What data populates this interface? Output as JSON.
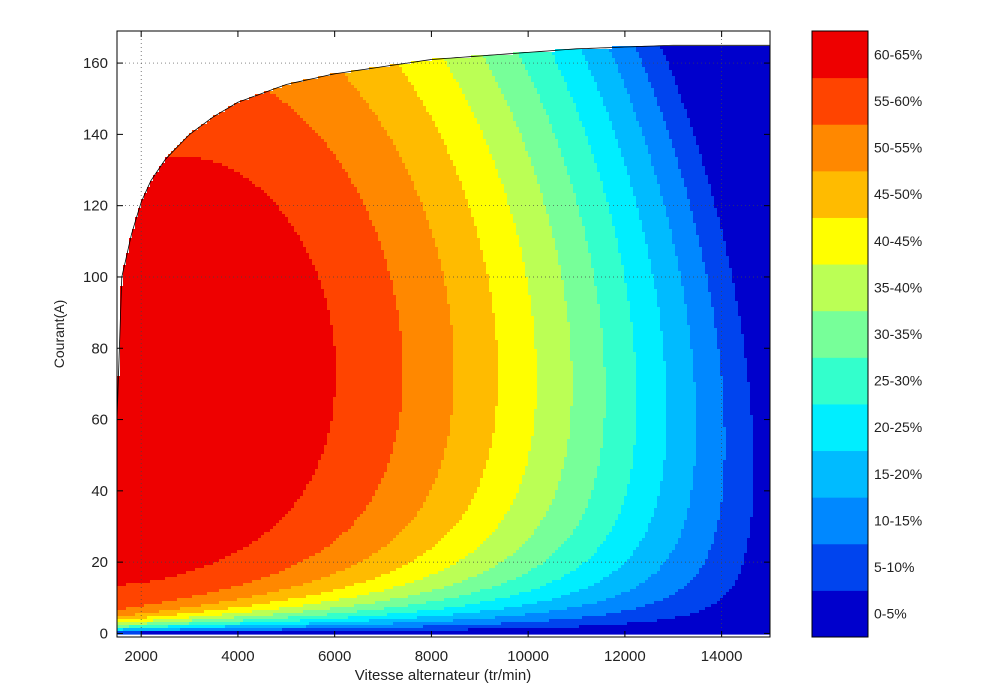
{
  "chart_data": {
    "type": "contour",
    "title": "",
    "xlabel": "Vitesse alternateur (tr/min)",
    "ylabel": "Courant(A)",
    "xlim": [
      1500,
      15000
    ],
    "ylim": [
      -1,
      169
    ],
    "x_ticks": [
      2000,
      4000,
      6000,
      8000,
      10000,
      12000,
      14000
    ],
    "y_ticks": [
      0,
      20,
      40,
      60,
      80,
      100,
      120,
      140,
      160
    ],
    "grid": "dotted",
    "grid_lines": {
      "x": [
        2000,
        14000
      ],
      "y": [
        20,
        100,
        120,
        160
      ]
    },
    "max_current_envelope": {
      "x": [
        1500,
        1600,
        1800,
        2000,
        2200,
        2500,
        3000,
        3500,
        4000,
        5000,
        6000,
        7000,
        8000,
        9000,
        10000,
        11000,
        12000,
        13000,
        14000,
        15000
      ],
      "y": [
        60,
        100,
        112,
        121,
        127,
        133,
        140,
        145,
        149,
        154,
        157,
        159,
        161,
        162,
        163,
        164,
        164.5,
        165,
        165,
        165
      ]
    },
    "levels": [
      {
        "label": "0-5%",
        "color": "#0000cc"
      },
      {
        "label": "5-10%",
        "color": "#0044ee"
      },
      {
        "label": "10-15%",
        "color": "#0088ff"
      },
      {
        "label": "15-20%",
        "color": "#00bbff"
      },
      {
        "label": "20-25%",
        "color": "#00eeff"
      },
      {
        "label": "25-30%",
        "color": "#33ffcc"
      },
      {
        "label": "30-35%",
        "color": "#77ff99"
      },
      {
        "label": "35-40%",
        "color": "#bbff55"
      },
      {
        "label": "40-45%",
        "color": "#ffff00"
      },
      {
        "label": "45-50%",
        "color": "#ffbb00"
      },
      {
        "label": "50-55%",
        "color": "#ff8800"
      },
      {
        "label": "55-60%",
        "color": "#ff4400"
      },
      {
        "label": "60-65%",
        "color": "#ee0000"
      }
    ],
    "efficiency_model": {
      "description_ref": "",
      "peak": 65,
      "x_peak": 2600,
      "y_peak": 72
    }
  }
}
